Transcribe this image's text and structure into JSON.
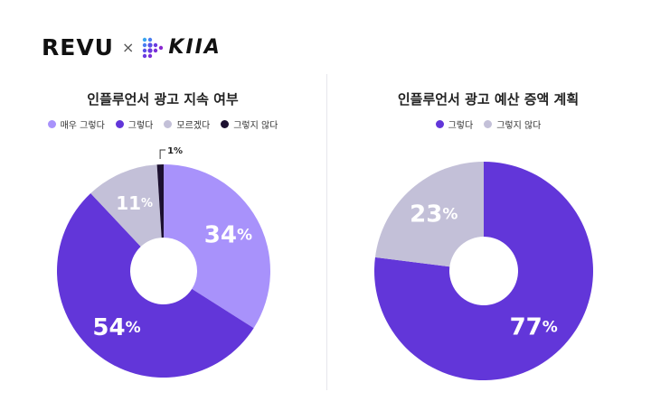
{
  "brand": {
    "revu": "REVU",
    "times": "×",
    "kiia": "KIIA"
  },
  "colors": {
    "c1": "#a892fb",
    "c2": "#6236d9",
    "c3": "#c3c0d8",
    "c4": "#1c1030"
  },
  "chart_data": [
    {
      "type": "pie",
      "title": "인플루언서 광고 지속 여부",
      "legend_position": "top",
      "slices": [
        {
          "label": "매우 그렇다",
          "value": 34,
          "color": "#a892fb"
        },
        {
          "label": "그렇다",
          "value": 54,
          "color": "#6236d9"
        },
        {
          "label": "모르겠다",
          "value": 11,
          "color": "#c3c0d8"
        },
        {
          "label": "그렇지 않다",
          "value": 1,
          "color": "#1c1030"
        }
      ],
      "unit": "%"
    },
    {
      "type": "pie",
      "title": "인플루언서 광고 예산 증액 계획",
      "legend_position": "top",
      "slices": [
        {
          "label": "그렇다",
          "value": 77,
          "color": "#6236d9"
        },
        {
          "label": "그렇지 않다",
          "value": 23,
          "color": "#c3c0d8"
        }
      ],
      "unit": "%"
    }
  ]
}
